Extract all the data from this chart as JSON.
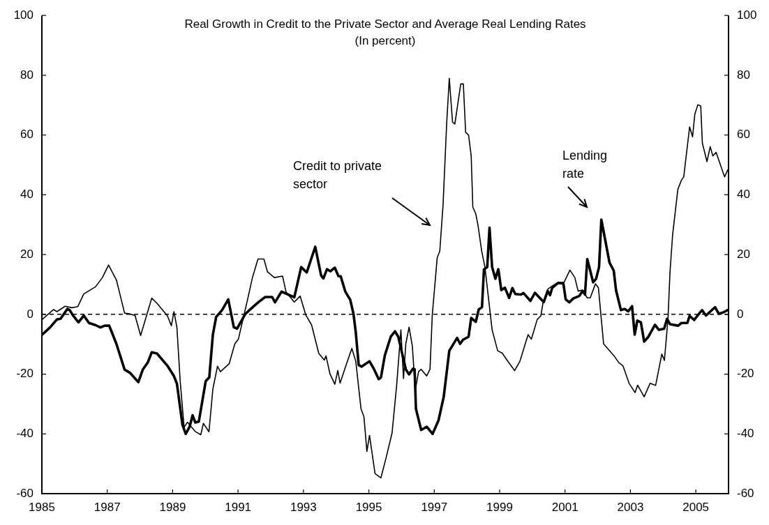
{
  "chart_data": {
    "type": "line",
    "title": "Real Growth in Credit to the Private Sector and Average Real Lending Rates",
    "subtitle": "(In percent)",
    "xlim": [
      1985,
      2006
    ],
    "xticks": [
      1985,
      1987,
      1989,
      1991,
      1993,
      1995,
      1997,
      1999,
      2001,
      2003,
      2005
    ],
    "ylim": [
      -60,
      100
    ],
    "yticks": [
      -60,
      -40,
      -20,
      0,
      20,
      40,
      60,
      80,
      100
    ],
    "y2lim": [
      -60,
      100
    ],
    "y2ticks": [
      -60,
      -40,
      -20,
      0,
      20,
      40,
      60,
      80,
      100
    ],
    "grid": false,
    "legend": false,
    "marker": "none",
    "line_style": "solid",
    "ref_lines": [
      {
        "axis": "y",
        "value": 0,
        "color": "#000000",
        "line_style": "dashed"
      }
    ],
    "annotations": [
      "Credit to private\nsector",
      "Lending\nrate"
    ],
    "series": [
      {
        "color": "#000000",
        "x": [
          1985.01,
          1985.36,
          1985.46,
          1985.71,
          1985.92,
          1986.1,
          1986.28,
          1986.64,
          1986.85,
          1987.04,
          1987.28,
          1987.53,
          1987.7,
          1987.85,
          1988.02,
          1988.36,
          1988.52,
          1988.84,
          1988.96,
          1989.04,
          1989.13,
          1989.23,
          1989.35,
          1989.45,
          1989.69,
          1989.86,
          1989.94,
          1990.11,
          1990.23,
          1990.37,
          1990.46,
          1990.73,
          1990.9,
          1991.01,
          1991.29,
          1991.44,
          1991.61,
          1991.79,
          1991.9,
          1992.11,
          1992.36,
          1992.47,
          1992.72,
          1992.9,
          1993.07,
          1993.25,
          1993.47,
          1993.64,
          1993.69,
          1993.81,
          1993.96,
          1994.05,
          1994.12,
          1994.31,
          1994.48,
          1994.6,
          1994.76,
          1994.85,
          1994.94,
          1995.02,
          1995.19,
          1995.37,
          1995.53,
          1995.71,
          1995.85,
          1995.98,
          1996.06,
          1996.13,
          1996.23,
          1996.33,
          1996.42,
          1996.52,
          1996.6,
          1996.77,
          1996.87,
          1996.94,
          1997.09,
          1997.17,
          1997.27,
          1997.38,
          1997.46,
          1997.56,
          1997.63,
          1997.81,
          1997.89,
          1997.96,
          1998.05,
          1998.13,
          1998.18,
          1998.27,
          1998.34,
          1998.45,
          1998.55,
          1998.77,
          1998.94,
          1999.08,
          1999.3,
          1999.46,
          1999.62,
          1999.87,
          1999.97,
          2000.15,
          2000.26,
          2000.33,
          2000.47,
          2000.61,
          2000.79,
          2000.97,
          2001.15,
          2001.3,
          2001.4,
          2001.54,
          2001.68,
          2001.77,
          2001.93,
          2002.02,
          2002.18,
          2002.5,
          2002.64,
          2002.77,
          2002.96,
          2003.14,
          2003.22,
          2003.42,
          2003.6,
          2003.77,
          2003.96,
          2004.04,
          2004.15,
          2004.21,
          2004.29,
          2004.45,
          2004.56,
          2004.63,
          2004.81,
          2004.9,
          2004.97,
          2005.06,
          2005.15,
          2005.2,
          2005.34,
          2005.44,
          2005.52,
          2005.62,
          2005.88,
          2005.98
        ],
        "values": [
          -1.7,
          1.6,
          0.9,
          2.7,
          2.2,
          2.6,
          6.8,
          9.2,
          12.3,
          16.5,
          11.5,
          0.4,
          0.1,
          -0.4,
          -7.1,
          5.4,
          3.7,
          -0.5,
          -3.8,
          0.9,
          -4.4,
          -22.3,
          -37.8,
          -36.1,
          -39.2,
          -40.3,
          -36.5,
          -39.3,
          -25,
          -17.4,
          -19.2,
          -16.5,
          -9.9,
          -8.3,
          4.9,
          12.3,
          18.5,
          18.5,
          14.2,
          12.3,
          12.8,
          7.4,
          4.1,
          6.1,
          -0.2,
          -3.6,
          -13.1,
          -15.3,
          -13.9,
          -19.9,
          -23.4,
          -18.8,
          -23,
          -16.8,
          -11.4,
          -15.7,
          -31.6,
          -34.3,
          -45.9,
          -40.5,
          -53.3,
          -54.7,
          -47.9,
          -39.7,
          -23.8,
          -5.2,
          -21.5,
          -9.9,
          -4.3,
          -10.6,
          -25.4,
          -19.2,
          -18.4,
          -20.6,
          -18.4,
          -0.2,
          18.9,
          21.2,
          36.7,
          63.9,
          79,
          64.3,
          63.7,
          77.1,
          77.1,
          60.9,
          60,
          53,
          35.9,
          33.6,
          29.7,
          21.2,
          15.8,
          -5.2,
          -12.2,
          -13,
          -16.5,
          -18.8,
          -15.7,
          -6.8,
          -8.3,
          -1.7,
          -0.5,
          4.1,
          8.4,
          9.5,
          10.7,
          10.7,
          14.8,
          12.3,
          7.8,
          8.1,
          5.5,
          5.5,
          10.2,
          8.9,
          -9.9,
          -13.9,
          -16.1,
          -17.2,
          -23.1,
          -26.2,
          -23.7,
          -27.6,
          -23.1,
          -23.8,
          -13.3,
          -15.4,
          -1.3,
          14.2,
          26.6,
          41.8,
          44.9,
          46,
          62.7,
          59.4,
          67,
          70.1,
          69.7,
          57.3,
          51.1,
          56.1,
          53,
          54.2,
          46,
          48.4
        ]
      },
      {
        "color": "#000000",
        "x": [
          1985.01,
          1985.25,
          1985.46,
          1985.57,
          1985.78,
          1985.85,
          1985.96,
          1986.12,
          1986.28,
          1986.44,
          1986.64,
          1986.79,
          1986.92,
          1987.06,
          1987.28,
          1987.53,
          1987.7,
          1987.95,
          1988.09,
          1988.24,
          1988.36,
          1988.52,
          1988.84,
          1989.04,
          1989.13,
          1989.3,
          1989.4,
          1989.52,
          1989.61,
          1989.69,
          1989.8,
          1990.01,
          1990.12,
          1990.23,
          1990.33,
          1990.51,
          1990.7,
          1990.87,
          1990.97,
          1991.22,
          1991.47,
          1991.65,
          1991.83,
          1992.04,
          1992.13,
          1992.33,
          1992.72,
          1992.93,
          1993.1,
          1993.36,
          1993.54,
          1993.61,
          1993.72,
          1993.82,
          1993.96,
          1994.07,
          1994.14,
          1994.28,
          1994.43,
          1994.53,
          1994.6,
          1994.69,
          1994.78,
          1995.02,
          1995.16,
          1995.3,
          1995.37,
          1995.49,
          1995.67,
          1995.8,
          1995.9,
          1996.13,
          1996.23,
          1996.35,
          1996.4,
          1996.44,
          1996.6,
          1996.77,
          1996.95,
          1997.13,
          1997.29,
          1997.46,
          1997.7,
          1997.79,
          1997.88,
          1998.05,
          1998.13,
          1998.27,
          1998.36,
          1998.46,
          1998.52,
          1998.62,
          1998.69,
          1998.77,
          1998.87,
          1998.96,
          1999.05,
          1999.16,
          1999.29,
          1999.39,
          1999.48,
          1999.65,
          1999.73,
          1999.94,
          2000.08,
          2000.35,
          2000.47,
          2000.54,
          2000.61,
          2000.79,
          2000.95,
          2001.02,
          2001.13,
          2001.25,
          2001.43,
          2001.54,
          2001.61,
          2001.68,
          2001.86,
          2001.95,
          2002.04,
          2002.11,
          2002.36,
          2002.49,
          2002.56,
          2002.71,
          2002.82,
          2002.93,
          2003.05,
          2003.13,
          2003.21,
          2003.32,
          2003.42,
          2003.55,
          2003.75,
          2003.87,
          2004.03,
          2004.12,
          2004.21,
          2004.46,
          2004.56,
          2004.74,
          2004.81,
          2004.95,
          2005.1,
          2005.19,
          2005.31,
          2005.59,
          2005.7,
          2005.83,
          2005.97
        ],
        "values": [
          -6.8,
          -4.4,
          -1.7,
          -1.5,
          1.8,
          1.4,
          -0.5,
          -2.7,
          -0.4,
          -2.9,
          -3.6,
          -4.4,
          -3.8,
          -3.8,
          -9.9,
          -18.5,
          -19.6,
          -22.7,
          -18.4,
          -16.1,
          -12.7,
          -13.1,
          -17.2,
          -20.7,
          -23.2,
          -37,
          -40,
          -37.6,
          -33.8,
          -36.2,
          -35.9,
          -22.4,
          -21.1,
          -6.8,
          -0.9,
          1.4,
          5,
          -4.3,
          -4.8,
          0.1,
          2.6,
          4.3,
          5.8,
          5.8,
          4,
          7.6,
          5.7,
          15.8,
          14,
          22.6,
          13,
          12,
          15.1,
          14.4,
          15.6,
          12.8,
          12.7,
          7.6,
          4.9,
          0.2,
          -6,
          -17,
          -17.5,
          -15.7,
          -18.4,
          -21.7,
          -21.1,
          -13.7,
          -7.5,
          -5.7,
          -7.5,
          -18.4,
          -20.1,
          -18.2,
          -18.4,
          -31.6,
          -38.7,
          -37.6,
          -40,
          -35.5,
          -27.6,
          -12.2,
          -7.9,
          -9.9,
          -8.5,
          -7.5,
          -1.2,
          -2.5,
          1.6,
          2.4,
          15,
          15.8,
          29,
          15.8,
          11.9,
          15.1,
          8.1,
          8.9,
          5.5,
          8.8,
          6.8,
          6.6,
          7.1,
          4.5,
          7.2,
          4.1,
          7.8,
          6.4,
          8.9,
          10.5,
          10.3,
          5,
          4,
          5.3,
          6.1,
          7.8,
          6.6,
          18.5,
          10.7,
          11.9,
          15.8,
          31.7,
          17.3,
          14.6,
          8,
          1.4,
          1.8,
          1,
          2.7,
          -6.8,
          -2.1,
          -2.7,
          -9.1,
          -7.5,
          -3.5,
          -5.2,
          -4.8,
          -1.5,
          -3.3,
          -3.8,
          -2.9,
          -2.9,
          -0.5,
          -1.9,
          0.2,
          1.4,
          -0.4,
          2.4,
          0.2,
          0.6,
          1.4
        ]
      }
    ]
  }
}
